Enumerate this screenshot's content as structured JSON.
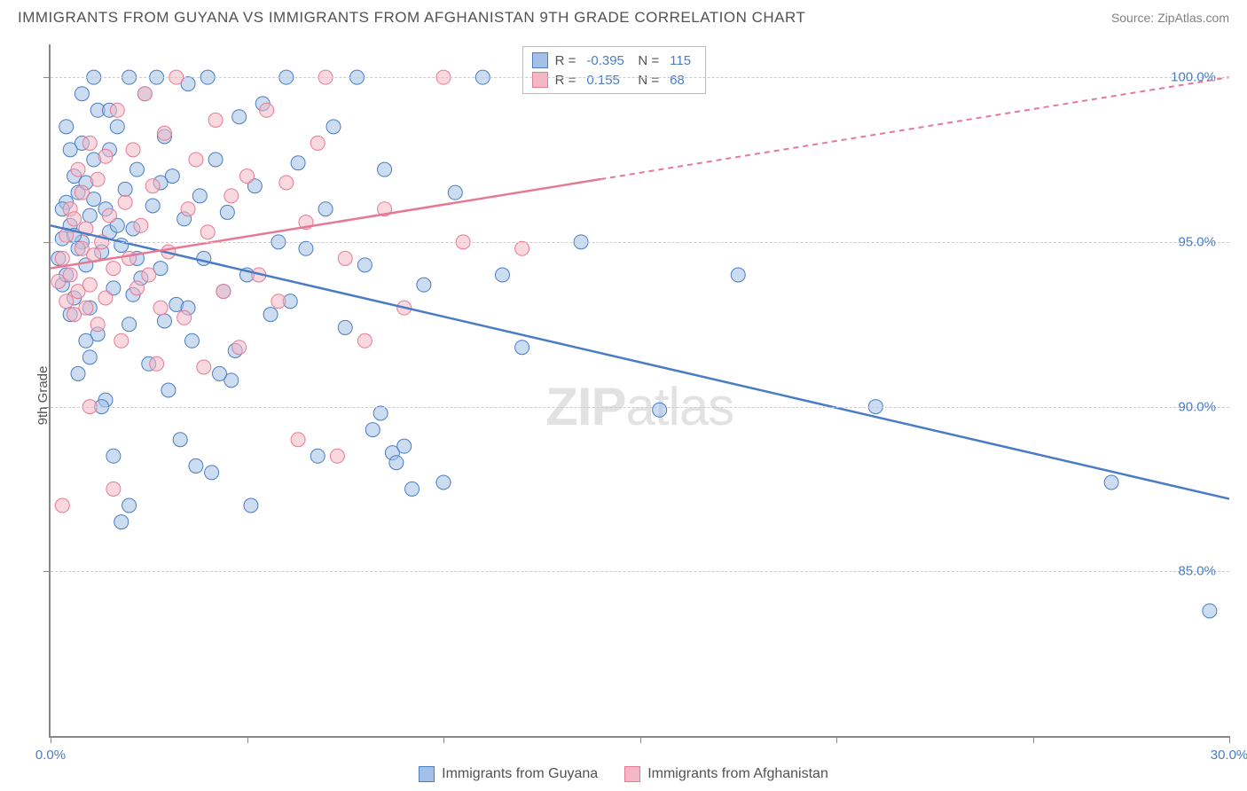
{
  "title": "IMMIGRANTS FROM GUYANA VS IMMIGRANTS FROM AFGHANISTAN 9TH GRADE CORRELATION CHART",
  "source": "Source: ZipAtlas.com",
  "watermark_bold": "ZIP",
  "watermark_rest": "atlas",
  "y_axis_label": "9th Grade",
  "chart": {
    "type": "scatter",
    "xlim": [
      0,
      30
    ],
    "ylim": [
      80,
      101
    ],
    "x_ticks": [
      0,
      5,
      10,
      15,
      20,
      25,
      30
    ],
    "x_tick_labels": {
      "0": "0.0%",
      "30": "30.0%"
    },
    "y_gridlines": [
      85,
      90,
      95,
      100
    ],
    "y_tick_labels": {
      "85": "85.0%",
      "90": "90.0%",
      "95": "95.0%",
      "100": "100.0%"
    },
    "background_color": "#ffffff",
    "grid_color": "#cccccc",
    "axis_color": "#888888",
    "marker_radius": 8,
    "marker_opacity": 0.55,
    "series": [
      {
        "name": "Immigrants from Guyana",
        "color_fill": "#a3c1e8",
        "color_stroke": "#4a7cc4",
        "R": "-0.395",
        "N": "115",
        "trend": {
          "x1": 0,
          "y1": 95.5,
          "x2": 30,
          "y2": 87.2,
          "solid_to_x": 30
        },
        "points": [
          [
            0.2,
            94.5
          ],
          [
            0.3,
            95.1
          ],
          [
            0.3,
            93.7
          ],
          [
            0.4,
            96.2
          ],
          [
            0.4,
            94.0
          ],
          [
            0.5,
            95.5
          ],
          [
            0.5,
            92.8
          ],
          [
            0.6,
            97.0
          ],
          [
            0.6,
            93.3
          ],
          [
            0.7,
            96.5
          ],
          [
            0.7,
            91.0
          ],
          [
            0.8,
            95.0
          ],
          [
            0.8,
            98.0
          ],
          [
            0.9,
            94.3
          ],
          [
            0.9,
            96.8
          ],
          [
            1.0,
            93.0
          ],
          [
            1.0,
            95.8
          ],
          [
            1.1,
            97.5
          ],
          [
            1.2,
            92.2
          ],
          [
            1.2,
            99.0
          ],
          [
            1.3,
            94.7
          ],
          [
            1.4,
            96.0
          ],
          [
            1.4,
            90.2
          ],
          [
            1.5,
            95.3
          ],
          [
            1.5,
            97.8
          ],
          [
            1.6,
            93.6
          ],
          [
            1.7,
            98.5
          ],
          [
            1.8,
            86.5
          ],
          [
            1.8,
            94.9
          ],
          [
            1.9,
            96.6
          ],
          [
            2.0,
            100.0
          ],
          [
            2.0,
            92.5
          ],
          [
            2.1,
            95.4
          ],
          [
            2.2,
            97.2
          ],
          [
            2.3,
            93.9
          ],
          [
            2.4,
            99.5
          ],
          [
            2.5,
            91.3
          ],
          [
            2.6,
            96.1
          ],
          [
            2.8,
            94.2
          ],
          [
            2.9,
            98.2
          ],
          [
            3.0,
            90.5
          ],
          [
            3.1,
            97.0
          ],
          [
            3.2,
            93.1
          ],
          [
            3.4,
            95.7
          ],
          [
            3.5,
            99.8
          ],
          [
            3.6,
            92.0
          ],
          [
            3.8,
            96.4
          ],
          [
            3.9,
            94.5
          ],
          [
            4.0,
            100.0
          ],
          [
            4.1,
            88.0
          ],
          [
            4.2,
            97.5
          ],
          [
            4.4,
            93.5
          ],
          [
            4.5,
            95.9
          ],
          [
            4.7,
            91.7
          ],
          [
            4.8,
            98.8
          ],
          [
            5.0,
            94.0
          ],
          [
            5.1,
            87.0
          ],
          [
            5.2,
            96.7
          ],
          [
            5.4,
            99.2
          ],
          [
            5.6,
            92.8
          ],
          [
            5.8,
            95.0
          ],
          [
            6.0,
            100.0
          ],
          [
            6.1,
            93.2
          ],
          [
            6.3,
            97.4
          ],
          [
            6.5,
            94.8
          ],
          [
            6.8,
            88.5
          ],
          [
            7.0,
            96.0
          ],
          [
            7.2,
            98.5
          ],
          [
            7.5,
            92.4
          ],
          [
            7.8,
            100.0
          ],
          [
            8.0,
            94.3
          ],
          [
            8.2,
            89.3
          ],
          [
            8.4,
            89.8
          ],
          [
            8.5,
            97.2
          ],
          [
            8.7,
            88.6
          ],
          [
            8.8,
            88.3
          ],
          [
            9.0,
            88.8
          ],
          [
            9.2,
            87.5
          ],
          [
            9.5,
            93.7
          ],
          [
            10.0,
            87.7
          ],
          [
            10.3,
            96.5
          ],
          [
            11.0,
            100.0
          ],
          [
            11.5,
            94.0
          ],
          [
            12.0,
            91.8
          ],
          [
            13.5,
            95.0
          ],
          [
            15.5,
            89.9
          ],
          [
            17.5,
            94.0
          ],
          [
            21.0,
            90.0
          ],
          [
            27.0,
            87.7
          ],
          [
            29.5,
            83.8
          ],
          [
            1.1,
            100.0
          ],
          [
            2.7,
            100.0
          ],
          [
            3.3,
            89.0
          ],
          [
            4.6,
            90.8
          ],
          [
            1.6,
            88.5
          ],
          [
            2.0,
            87.0
          ],
          [
            0.5,
            97.8
          ],
          [
            0.8,
            99.5
          ],
          [
            1.0,
            91.5
          ],
          [
            1.3,
            90.0
          ],
          [
            0.4,
            98.5
          ],
          [
            0.6,
            95.2
          ],
          [
            0.9,
            92.0
          ],
          [
            1.1,
            96.3
          ],
          [
            1.5,
            99.0
          ],
          [
            2.2,
            94.5
          ],
          [
            2.8,
            96.8
          ],
          [
            3.5,
            93.0
          ],
          [
            4.3,
            91.0
          ],
          [
            1.7,
            95.5
          ],
          [
            2.1,
            93.4
          ],
          [
            2.9,
            92.6
          ],
          [
            3.7,
            88.2
          ],
          [
            0.3,
            96.0
          ],
          [
            0.7,
            94.8
          ]
        ]
      },
      {
        "name": "Immigrants from Afghanistan",
        "color_fill": "#f4b8c4",
        "color_stroke": "#e67a94",
        "R": "0.155",
        "N": "68",
        "trend": {
          "x1": 0,
          "y1": 94.2,
          "x2": 30,
          "y2": 100.0,
          "solid_to_x": 14
        },
        "points": [
          [
            0.2,
            93.8
          ],
          [
            0.3,
            94.5
          ],
          [
            0.4,
            95.2
          ],
          [
            0.4,
            93.2
          ],
          [
            0.5,
            96.0
          ],
          [
            0.5,
            94.0
          ],
          [
            0.6,
            95.7
          ],
          [
            0.6,
            92.8
          ],
          [
            0.7,
            97.2
          ],
          [
            0.7,
            93.5
          ],
          [
            0.8,
            94.8
          ],
          [
            0.8,
            96.5
          ],
          [
            0.9,
            93.0
          ],
          [
            0.9,
            95.4
          ],
          [
            1.0,
            98.0
          ],
          [
            1.0,
            93.7
          ],
          [
            1.1,
            94.6
          ],
          [
            1.2,
            96.9
          ],
          [
            1.2,
            92.5
          ],
          [
            1.3,
            95.0
          ],
          [
            1.4,
            97.6
          ],
          [
            1.4,
            93.3
          ],
          [
            1.5,
            95.8
          ],
          [
            1.6,
            94.2
          ],
          [
            1.7,
            99.0
          ],
          [
            1.8,
            92.0
          ],
          [
            1.9,
            96.2
          ],
          [
            2.0,
            94.5
          ],
          [
            2.1,
            97.8
          ],
          [
            2.2,
            93.6
          ],
          [
            2.3,
            95.5
          ],
          [
            2.4,
            99.5
          ],
          [
            2.5,
            94.0
          ],
          [
            2.6,
            96.7
          ],
          [
            2.8,
            93.0
          ],
          [
            2.9,
            98.3
          ],
          [
            3.0,
            94.7
          ],
          [
            3.2,
            100.0
          ],
          [
            3.4,
            92.7
          ],
          [
            3.5,
            96.0
          ],
          [
            3.7,
            97.5
          ],
          [
            3.9,
            91.2
          ],
          [
            4.0,
            95.3
          ],
          [
            4.2,
            98.7
          ],
          [
            4.4,
            93.5
          ],
          [
            4.6,
            96.4
          ],
          [
            4.8,
            91.8
          ],
          [
            5.0,
            97.0
          ],
          [
            5.3,
            94.0
          ],
          [
            5.5,
            99.0
          ],
          [
            5.8,
            93.2
          ],
          [
            6.0,
            96.8
          ],
          [
            6.3,
            89.0
          ],
          [
            6.5,
            95.6
          ],
          [
            6.8,
            98.0
          ],
          [
            7.0,
            100.0
          ],
          [
            7.3,
            88.5
          ],
          [
            7.5,
            94.5
          ],
          [
            8.0,
            92.0
          ],
          [
            8.5,
            96.0
          ],
          [
            9.0,
            93.0
          ],
          [
            10.0,
            100.0
          ],
          [
            10.5,
            95.0
          ],
          [
            12.0,
            94.8
          ],
          [
            0.3,
            87.0
          ],
          [
            1.6,
            87.5
          ],
          [
            1.0,
            90.0
          ],
          [
            2.7,
            91.3
          ]
        ]
      }
    ]
  },
  "legend_top": {
    "r_label": "R =",
    "n_label": "N ="
  }
}
